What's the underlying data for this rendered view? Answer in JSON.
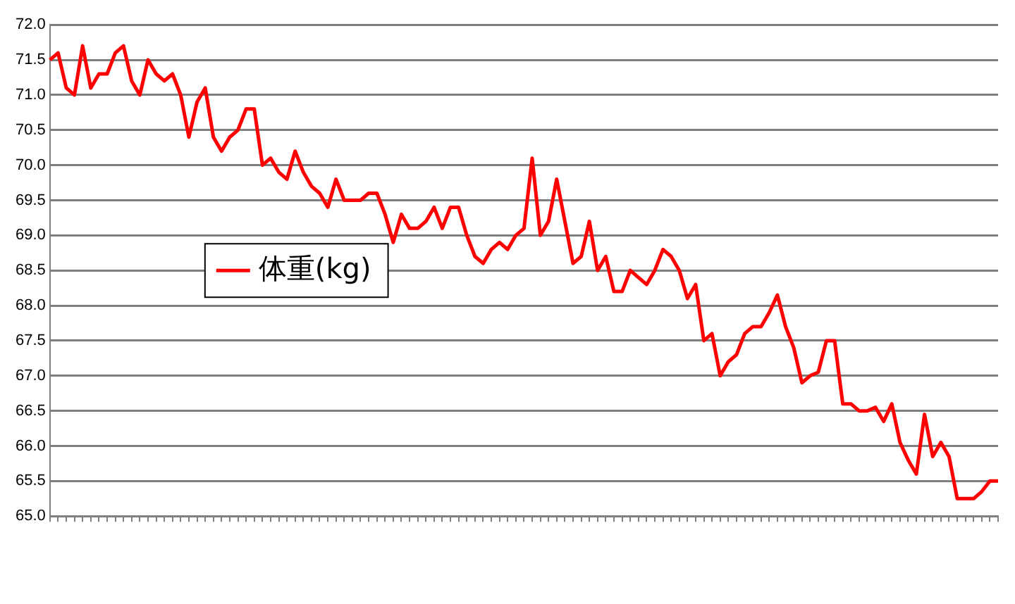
{
  "chart_data": {
    "type": "line",
    "categories": [
      null,
      null,
      null,
      null,
      null,
      null,
      null,
      null,
      null,
      null,
      null,
      null,
      null,
      null,
      null,
      null,
      null,
      null,
      null,
      null,
      null,
      null,
      null,
      null,
      null,
      null,
      null,
      null,
      null,
      null,
      null,
      null,
      null,
      null,
      null,
      null,
      null,
      null,
      null,
      null,
      null,
      null,
      null,
      null,
      null,
      null,
      null,
      null,
      null,
      null,
      null,
      null,
      null,
      null,
      null,
      null,
      null,
      null,
      null,
      null,
      null,
      null,
      null,
      null,
      null,
      null,
      null,
      null,
      null,
      null,
      null,
      null,
      null,
      null,
      null,
      null,
      null,
      null,
      null,
      null,
      null,
      null,
      null,
      null,
      null,
      null,
      null,
      null,
      null,
      null,
      null,
      null,
      null,
      null,
      null,
      null,
      null,
      null,
      null,
      null,
      null,
      null,
      null,
      null,
      null,
      null,
      null,
      null,
      null,
      null,
      null,
      null,
      null,
      null,
      null,
      null,
      null
    ],
    "series": [
      {
        "name": "体重(kg)",
        "color": "#ff0000",
        "values": [
          71.5,
          71.6,
          71.1,
          71.0,
          71.7,
          71.1,
          71.3,
          71.3,
          71.6,
          71.7,
          71.2,
          71.0,
          71.5,
          71.3,
          71.2,
          71.3,
          71.0,
          70.4,
          70.9,
          71.1,
          70.4,
          70.2,
          70.4,
          70.5,
          70.8,
          70.8,
          70.0,
          70.1,
          69.9,
          69.8,
          70.2,
          69.9,
          69.7,
          69.6,
          69.4,
          69.8,
          69.5,
          69.5,
          69.5,
          69.6,
          69.6,
          69.3,
          68.9,
          69.3,
          69.1,
          69.1,
          69.2,
          69.4,
          69.1,
          69.4,
          69.4,
          69.0,
          68.7,
          68.6,
          68.8,
          68.9,
          68.8,
          69.0,
          69.1,
          70.1,
          69.0,
          69.2,
          69.8,
          69.2,
          68.6,
          68.7,
          69.2,
          68.5,
          68.7,
          68.2,
          68.2,
          68.5,
          68.4,
          68.3,
          68.5,
          68.8,
          68.7,
          68.5,
          68.1,
          68.3,
          67.5,
          67.6,
          67.0,
          67.2,
          67.3,
          67.6,
          67.7,
          67.7,
          67.9,
          68.15,
          67.7,
          67.4,
          66.9,
          67.0,
          67.05,
          67.5,
          67.5,
          66.6,
          66.6,
          66.5,
          66.5,
          66.55,
          66.35,
          66.6,
          66.05,
          65.8,
          65.6,
          66.45,
          65.85,
          66.05,
          65.85,
          65.25,
          65.25,
          65.25,
          65.35,
          65.5,
          65.5
        ]
      }
    ],
    "ylim": [
      65,
      72
    ],
    "yticks": [
      {
        "value": 65,
        "label": "65.0"
      },
      {
        "value": 65.5,
        "label": "65.5"
      },
      {
        "value": 66,
        "label": "66.0"
      },
      {
        "value": 66.5,
        "label": "66.5"
      },
      {
        "value": 67,
        "label": "67.0"
      },
      {
        "value": 67.5,
        "label": "67.5"
      },
      {
        "value": 68,
        "label": "68.0"
      },
      {
        "value": 68.5,
        "label": "68.5"
      },
      {
        "value": 69,
        "label": "69.0"
      },
      {
        "value": 69.5,
        "label": "69.5"
      },
      {
        "value": 70,
        "label": "70.0"
      },
      {
        "value": 70.5,
        "label": "70.5"
      },
      {
        "value": 71,
        "label": "71.0"
      },
      {
        "value": 71.5,
        "label": "71.5"
      },
      {
        "value": 72,
        "label": "72.0"
      }
    ],
    "grid": "y",
    "legend": "left",
    "marker": "none",
    "line_style": "solid"
  }
}
